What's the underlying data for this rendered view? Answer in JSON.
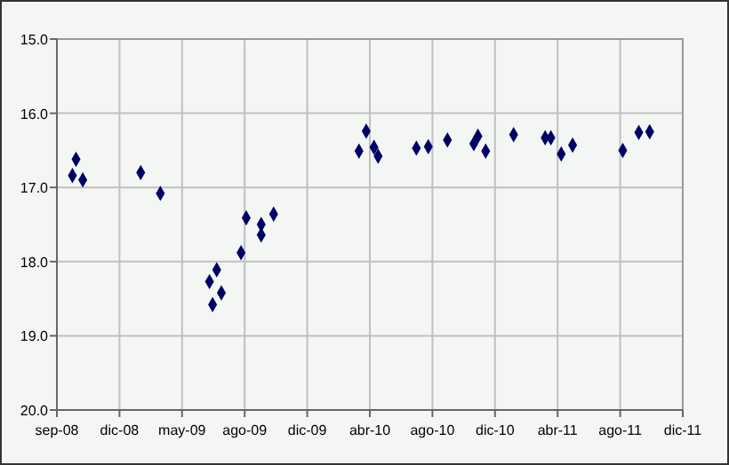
{
  "chart_data": {
    "type": "scatter",
    "marker": "diamond",
    "grid": true,
    "xlim": [
      "2008-09-01",
      "2011-12-25"
    ],
    "xticks": [
      {
        "value": "2008-09-01",
        "label": "sep-08"
      },
      {
        "value": "2008-12-31",
        "label": "dic-08"
      },
      {
        "value": "2009-05-01",
        "label": "may-09"
      },
      {
        "value": "2009-08-30",
        "label": "ago-09"
      },
      {
        "value": "2009-12-29",
        "label": "dic-09"
      },
      {
        "value": "2010-04-29",
        "label": "abr-10"
      },
      {
        "value": "2010-08-28",
        "label": "ago-10"
      },
      {
        "value": "2010-12-27",
        "label": "dic-10"
      },
      {
        "value": "2011-04-27",
        "label": "abr-11"
      },
      {
        "value": "2011-08-26",
        "label": "ago-11"
      },
      {
        "value": "2011-12-25",
        "label": "dic-11"
      }
    ],
    "ylim": [
      20,
      15
    ],
    "yticks": [
      {
        "value": 15,
        "label": "15.0"
      },
      {
        "value": 16,
        "label": "16.0"
      },
      {
        "value": 17,
        "label": "17.0"
      },
      {
        "value": 18,
        "label": "18.0"
      },
      {
        "value": 19,
        "label": "19.0"
      },
      {
        "value": 20,
        "label": "20.0"
      }
    ],
    "series": [
      {
        "color": "#000066",
        "x": [
          "2008-10-01",
          "2008-10-08",
          "2008-10-21",
          "2009-02-10",
          "2009-03-20",
          "2009-06-23",
          "2009-06-29",
          "2009-07-07",
          "2009-07-16",
          "2009-08-23",
          "2009-09-02",
          "2009-10-01",
          "2009-10-01",
          "2009-10-25",
          "2010-04-08",
          "2010-04-22",
          "2010-05-07",
          "2010-05-15",
          "2010-07-28",
          "2010-08-20",
          "2010-09-26",
          "2010-11-16",
          "2010-11-24",
          "2010-12-09",
          "2011-02-01",
          "2011-04-03",
          "2011-04-14",
          "2011-05-04",
          "2011-05-26",
          "2011-08-31",
          "2011-10-01",
          "2011-10-22"
        ],
        "values": [
          16.84,
          16.62,
          16.9,
          16.8,
          17.08,
          18.27,
          18.58,
          18.11,
          18.42,
          17.88,
          17.41,
          17.5,
          17.64,
          17.36,
          16.51,
          16.24,
          16.46,
          16.58,
          16.47,
          16.45,
          16.36,
          16.41,
          16.31,
          16.51,
          16.29,
          16.33,
          16.33,
          16.55,
          16.43,
          16.5,
          16.26,
          16.25
        ]
      }
    ]
  }
}
